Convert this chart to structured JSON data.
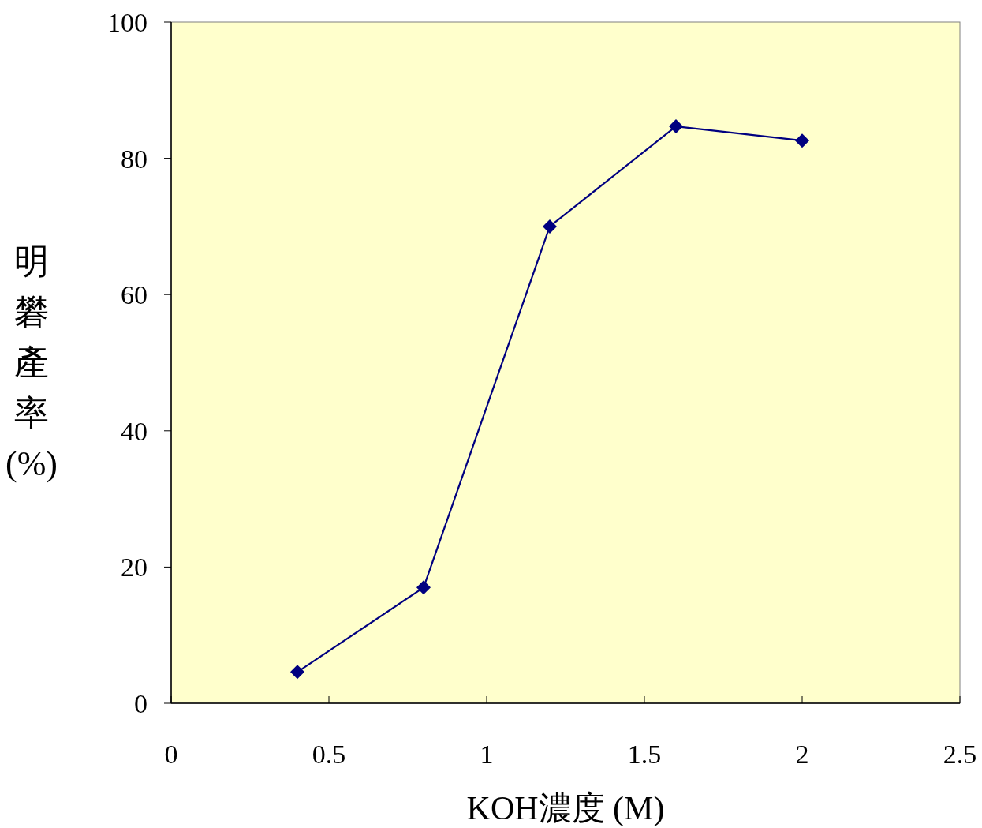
{
  "chart_data": {
    "type": "line",
    "xlabel": "KOH濃度 (M)",
    "ylabel": "明礬產率 (%)",
    "x": [
      0.4,
      0.8,
      1.2,
      1.6,
      2.0
    ],
    "series": [
      {
        "color": "#000080",
        "values": [
          4.6,
          17.0,
          70.0,
          84.7,
          82.6
        ]
      }
    ],
    "xlim": [
      0,
      2.5
    ],
    "xticks": [
      0,
      0.5,
      1,
      1.5,
      2,
      2.5
    ],
    "ylim": [
      0,
      100
    ],
    "yticks": [
      0,
      20,
      40,
      60,
      80,
      100
    ],
    "marker": "diamond",
    "line_style": "solid"
  }
}
